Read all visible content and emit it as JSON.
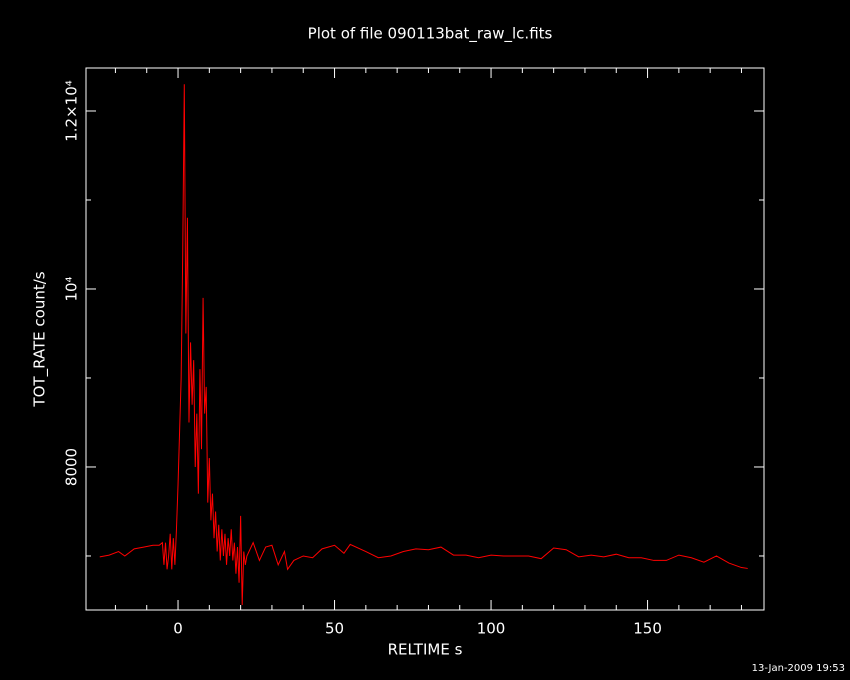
{
  "chart_data": {
    "type": "line",
    "title": "Plot of file 090113bat_raw_lc.fits",
    "x_label": "RELTIME  s",
    "y_label": "TOT_RATE  count/s",
    "footer": "13-Jan-2009 19:53",
    "xlim": [
      -29.4,
      187.2
    ],
    "ylim": [
      6393,
      12483
    ],
    "xticks": [
      0,
      50,
      100,
      150
    ],
    "xticks_minor": [
      -20,
      -10,
      10,
      20,
      30,
      40,
      60,
      70,
      80,
      90,
      110,
      120,
      130,
      140,
      160,
      170,
      180
    ],
    "yticks": [
      8000,
      {
        "value": 10000,
        "label": "10⁴"
      },
      {
        "value": 12000,
        "label": "1.2×10⁴"
      }
    ],
    "yticks_minor": [
      7000,
      9000,
      11000
    ],
    "series": [
      {
        "color": "#ff0000",
        "x": [
          -25,
          -22,
          -19,
          -17,
          -14,
          -11,
          -8,
          -6,
          -5,
          -4.5,
          -4,
          -3.5,
          -3,
          -2.5,
          -2,
          -1.5,
          -1,
          -0.5,
          0,
          0.5,
          1,
          1.5,
          2,
          2.5,
          3,
          3.5,
          4,
          4.5,
          5,
          5.5,
          6,
          6.5,
          7,
          7.5,
          8,
          8.5,
          9,
          9.5,
          10,
          10.5,
          11,
          11.5,
          12,
          12.5,
          13,
          13.5,
          14,
          14.5,
          15,
          15.5,
          16,
          16.5,
          17,
          17.5,
          18,
          18.5,
          19,
          19.5,
          20,
          20.5,
          21,
          21.5,
          22,
          24,
          26,
          28,
          30,
          32,
          34,
          35,
          37,
          40,
          43,
          46,
          50,
          53,
          55,
          60,
          64,
          68,
          72,
          76,
          80,
          84,
          88,
          92,
          96,
          100,
          104,
          108,
          112,
          116,
          120,
          124,
          128,
          132,
          136,
          140,
          144,
          148,
          152,
          156,
          160,
          164,
          168,
          172,
          176,
          180,
          182
        ],
        "values": [
          6990,
          7010,
          7050,
          7000,
          7080,
          7100,
          7120,
          7120,
          7150,
          6900,
          7150,
          6850,
          7000,
          7250,
          6850,
          7200,
          6900,
          7300,
          7800,
          8400,
          9000,
          10400,
          12300,
          9500,
          10800,
          8500,
          9400,
          8700,
          9200,
          8000,
          8600,
          7700,
          9100,
          8200,
          9900,
          8600,
          8900,
          7600,
          8100,
          7400,
          7700,
          7200,
          7500,
          7050,
          7350,
          6950,
          7300,
          7000,
          7250,
          6900,
          7200,
          7000,
          7300,
          6950,
          7150,
          6800,
          7100,
          6700,
          7450,
          6450,
          7050,
          6900,
          7000,
          7150,
          6950,
          7100,
          7120,
          6900,
          7050,
          6850,
          6950,
          7000,
          6980,
          7080,
          7120,
          7030,
          7130,
          7050,
          6980,
          7000,
          7050,
          7080,
          7070,
          7100,
          7010,
          7010,
          6980,
          7010,
          7000,
          7000,
          7000,
          6970,
          7090,
          7070,
          6990,
          7010,
          6990,
          7020,
          6980,
          6980,
          6950,
          6950,
          7010,
          6980,
          6930,
          7000,
          6920,
          6870,
          6860
        ]
      }
    ]
  }
}
